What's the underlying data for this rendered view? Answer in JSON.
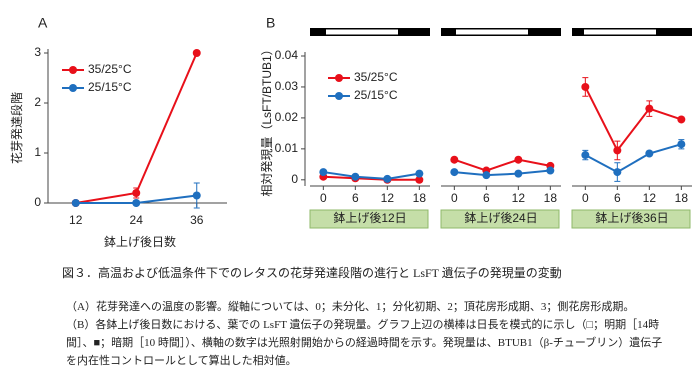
{
  "chart_data": [
    {
      "type": "line",
      "label": "A",
      "ylabel": "花芽発達段階",
      "xlabel": "鉢上げ後日数",
      "x": [
        12,
        24,
        36
      ],
      "xlim": [
        6.5,
        42
      ],
      "ylim": [
        0,
        3
      ],
      "yticks": [
        0,
        1,
        2,
        3
      ],
      "legend": "upper left",
      "series": [
        {
          "name": "35/25°C",
          "color": "#e8101a",
          "values": [
            0,
            0.2,
            3
          ],
          "errors": [
            null,
            0.1,
            null
          ]
        },
        {
          "name": "25/15°C",
          "color": "#1f6fbf",
          "values": [
            0,
            0,
            0.15
          ],
          "errors": [
            null,
            null,
            0.25
          ]
        }
      ]
    },
    {
      "type": "line",
      "label": "B",
      "ylabel": "相対発現量（LsFT/BTUB1）",
      "x": [
        0,
        6,
        12,
        18
      ],
      "xlim": [
        -2.5,
        20
      ],
      "ylim": [
        -0.002,
        0.04
      ],
      "yticks": [
        0,
        0.01,
        0.02,
        0.03,
        0.04
      ],
      "legend": "upper left",
      "groups": [
        "鉢上げ後12日",
        "鉢上げ後24日",
        "鉢上げ後36日"
      ],
      "series": [
        {
          "name": "35/25°C",
          "color": "#e8101a",
          "values": [
            [
              0.001,
              0.0005,
              0,
              0
            ],
            [
              0.0065,
              0.003,
              0.0065,
              0.0045
            ],
            [
              0.03,
              0.0095,
              0.023,
              0.0195
            ]
          ],
          "errors": [
            [
              null,
              null,
              null,
              null
            ],
            [
              null,
              null,
              0.0005,
              null
            ],
            [
              0.003,
              0.003,
              0.0025,
              null
            ]
          ]
        },
        {
          "name": "25/15°C",
          "color": "#1f6fbf",
          "values": [
            [
              0.0025,
              0.001,
              0.0003,
              0.002
            ],
            [
              0.0025,
              0.0015,
              0.002,
              0.003
            ],
            [
              0.008,
              0.0025,
              0.0085,
              0.0115
            ]
          ],
          "errors": [
            [
              null,
              null,
              null,
              null
            ],
            [
              null,
              null,
              null,
              null
            ],
            [
              0.0015,
              0.003,
              null,
              0.0015
            ]
          ]
        }
      ]
    }
  ],
  "caption": {
    "title": "図３．高温および低温条件下でのレタスの花芽発達段階の進行と LsFT 遺伝子の発現量の変動",
    "notes": [
      "（A）花芽発達への温度の影響。縦軸については、0；未分化、1；分化初期、2；頂花房形成期、3；側花房形成期。",
      "（B）各鉢上げ後日数における、葉での LsFT 遺伝子の発現量。グラフ上辺の横棒は日長を模式的に示し（□；明期［14時間］、■；暗期［10 時間］）、横軸の数字は光照射開始からの経過時間を示す。発現量は、BTUB1（β-チューブリン）遺伝子を内在性コントロールとして算出した相対値。"
    ]
  }
}
